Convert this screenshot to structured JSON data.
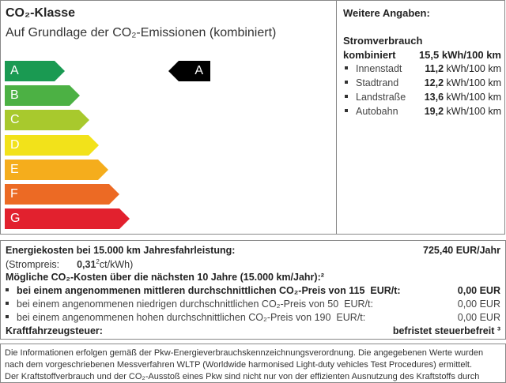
{
  "co2_class": {
    "title": "CO₂-Klasse",
    "subtitle": "Auf Grundlage der CO₂-Emissionen (kombiniert)",
    "classes": [
      {
        "label": "A",
        "color": "#1a9a52"
      },
      {
        "label": "B",
        "color": "#4cb144"
      },
      {
        "label": "C",
        "color": "#a8c92d"
      },
      {
        "label": "D",
        "color": "#f2e21a"
      },
      {
        "label": "E",
        "color": "#f5ad1c"
      },
      {
        "label": "F",
        "color": "#ec6a24"
      },
      {
        "label": "G",
        "color": "#e2212e"
      }
    ],
    "current": "A"
  },
  "more": {
    "heading": "Weitere Angaben:",
    "section": "Stromverbrauch",
    "combined_label": "kombiniert",
    "combined_value": "15,5 kWh/100 km",
    "items": [
      {
        "label": "Innenstadt",
        "value": "11,2",
        "unit": "kWh/100 km"
      },
      {
        "label": "Stadtrand",
        "value": "12,2",
        "unit": "kWh/100 km"
      },
      {
        "label": "Landstraße",
        "value": "13,6",
        "unit": "kWh/100 km"
      },
      {
        "label": "Autobahn",
        "value": "19,2",
        "unit": "kWh/100 km"
      }
    ]
  },
  "costs": {
    "energy_label": "Energiekosten bei 15.000 km Jahresfahrleistung:",
    "energy_value": "725,40 EUR/Jahr",
    "price_label": "(Strompreis:",
    "price_value": "0,31",
    "price_sup": "2",
    "price_unit": "ct/kWh)",
    "co2_heading": "Mögliche CO₂-Kosten über die nächsten 10 Jahre (15.000 km/Jahr):²",
    "scenarios": [
      {
        "text": "bei einem angenommenen mittleren durchschnittlichen CO₂-Preis von",
        "price": "115",
        "unit": "EUR/t:",
        "value": "0,00 EUR"
      },
      {
        "text": "bei einem angenommenen niedrigen durchschnittlichen CO₂-Preis von",
        "price": "50",
        "unit": "EUR/t:",
        "value": "0,00 EUR"
      },
      {
        "text": "bei einem angenommenen hohen durchschnittlichen CO₂-Preis von",
        "price": "190",
        "unit": "EUR/t:",
        "value": "0,00 EUR"
      }
    ],
    "tax_label": "Kraftfahrzeugsteuer:",
    "tax_value": "befristet steuerbefreit ³"
  },
  "info": {
    "lines": [
      "Die Informationen erfolgen gemäß der Pkw-Energieverbrauchskennzeichnungsverordnung. Die angegebenen Werte wurden",
      "nach dem vorgeschriebenen Messverfahren WLTP (Worldwide harmonised Light-duty vehicles Test Procedures) ermittelt.",
      "Der Kraftstoffverbrauch und der CO₂-Ausstoß eines Pkw sind nicht nur von der effizienten Ausnutzung des Kraftstoffs durch"
    ]
  }
}
